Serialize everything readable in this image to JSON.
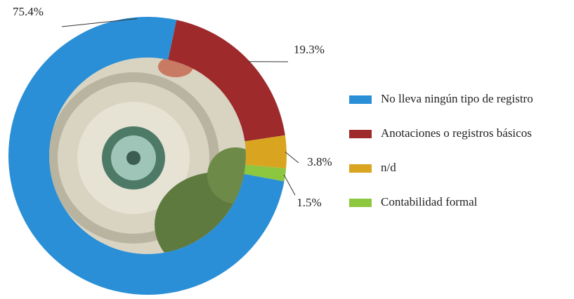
{
  "chart_data": {
    "type": "donut",
    "categories": [
      "No lleva ningún tipo de registro",
      "Anotaciones o registros básicos",
      "n/d",
      "Contabilidad formal"
    ],
    "values": [
      75.4,
      19.3,
      3.8,
      1.5
    ],
    "value_labels": [
      "75.4%",
      "19.3%",
      "3.8%",
      "1.5%"
    ],
    "colors": [
      "#2a8fd6",
      "#9e2a2b",
      "#d9a520",
      "#8dc63f"
    ]
  }
}
